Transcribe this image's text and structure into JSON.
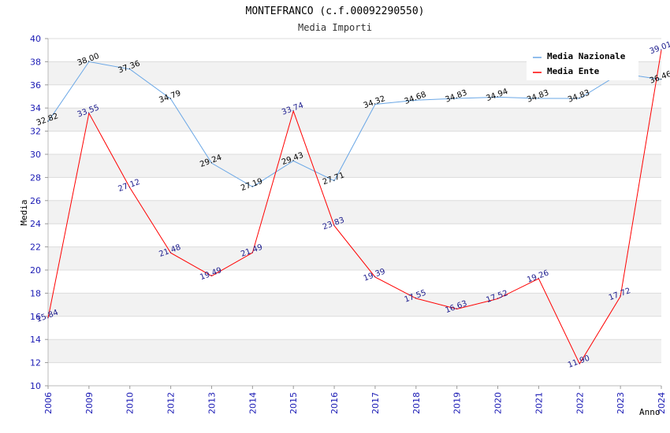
{
  "chart_data": {
    "type": "line",
    "title": "MONTEFRANCO (c.f.00092290550)",
    "subtitle": "Media Importi",
    "xlabel": "Anno",
    "ylabel": "Media",
    "ylim": [
      10,
      40
    ],
    "yticks": [
      10,
      12,
      14,
      16,
      18,
      20,
      22,
      24,
      26,
      28,
      30,
      32,
      34,
      36,
      38,
      40
    ],
    "categories": [
      "2006",
      "2009",
      "2010",
      "2012",
      "2013",
      "2014",
      "2015",
      "2016",
      "2017",
      "2018",
      "2019",
      "2020",
      "2021",
      "2022",
      "2023",
      "2024"
    ],
    "series": [
      {
        "name": "Media Nazionale",
        "color": "#6aa7e6",
        "label_color": "#000000",
        "values": [
          32.82,
          38.0,
          37.36,
          34.79,
          29.24,
          27.19,
          29.43,
          27.71,
          34.32,
          34.68,
          34.83,
          34.94,
          34.83,
          34.83,
          37.0,
          36.46
        ],
        "labels": [
          "32.82",
          "38.00",
          "37.36",
          "34.79",
          "29.24",
          "27.19",
          "29.43",
          "27.71",
          "34.32",
          "34.68",
          "34.83",
          "34.94",
          "34.83",
          "34.83",
          "",
          "36.46"
        ]
      },
      {
        "name": "Media Ente",
        "color": "#ff0000",
        "label_color": "#1a1a8c",
        "values": [
          15.84,
          33.55,
          27.12,
          21.48,
          19.49,
          21.49,
          33.74,
          23.83,
          19.39,
          17.55,
          16.63,
          17.52,
          19.26,
          11.9,
          17.72,
          39.01
        ],
        "labels": [
          "15.84",
          "33.55",
          "27.12",
          "21.48",
          "19.49",
          "21.49",
          "33.74",
          "23.83",
          "19.39",
          "17.55",
          "16.63",
          "17.52",
          "19.26",
          "11.90",
          "17.72",
          "39.01"
        ]
      }
    ],
    "grid": true,
    "legend_position": "top-right",
    "band_color": "#f2f2f2",
    "tick_color": "#1a1ab4"
  }
}
